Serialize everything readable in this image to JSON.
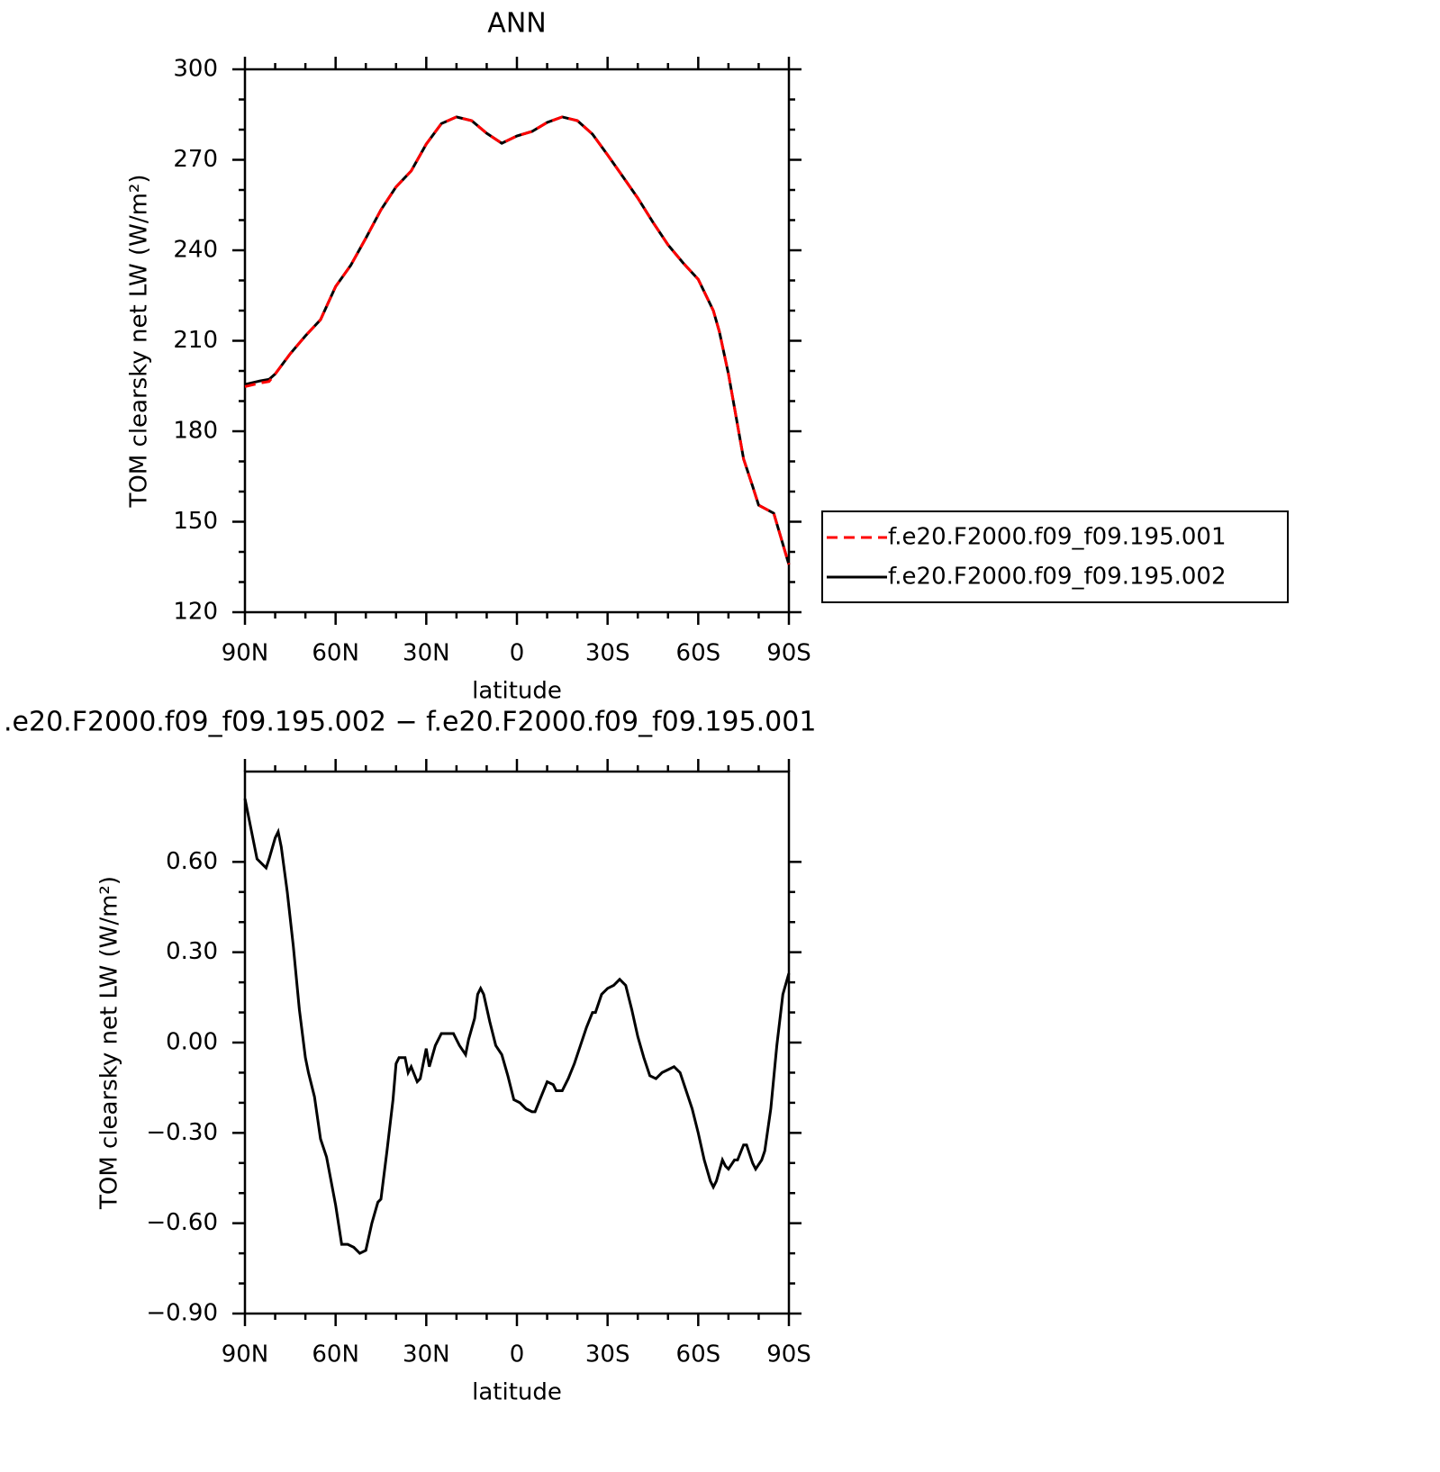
{
  "chart_data": [
    {
      "type": "line",
      "title": "ANN",
      "xlabel": "latitude",
      "ylabel": "TOM clearsky net LW (W/m²)",
      "x": [
        90,
        85,
        82,
        80,
        75,
        70,
        65,
        60,
        55,
        50,
        45,
        40,
        35,
        30,
        25,
        20,
        15,
        10,
        5,
        0,
        -5,
        -10,
        -15,
        -20,
        -25,
        -30,
        -35,
        -40,
        -45,
        -50,
        -55,
        -60,
        -65,
        -67,
        -70,
        -75,
        -78,
        -80,
        -85,
        -90
      ],
      "series": [
        {
          "name": "f.e20.F2000.f09_f09.195.001",
          "color": "#ff0000",
          "line_style": "dashed",
          "values": [
            194.8,
            196.0,
            196.5,
            199,
            205.7,
            211.6,
            217,
            228,
            235,
            244,
            253.4,
            261,
            266.3,
            275.2,
            282,
            284.2,
            283,
            278.8,
            275.5,
            277.9,
            279.4,
            282.4,
            284.2,
            283,
            278.5,
            271.6,
            264.5,
            257.3,
            249.3,
            241.8,
            235.8,
            230.4,
            220,
            213,
            199,
            170.8,
            161.8,
            155.5,
            152.8,
            135.8
          ]
        },
        {
          "name": "f.e20.F2000.f09_f09.195.002",
          "color": "#000000",
          "line_style": "solid",
          "values": [
            195.5,
            196.7,
            197.2,
            199,
            205.7,
            211.6,
            217,
            228,
            235,
            244,
            253.4,
            261,
            266.3,
            275.2,
            282,
            284.2,
            283,
            278.8,
            275.5,
            277.9,
            279.4,
            282.4,
            284.2,
            283,
            278.5,
            271.6,
            264.5,
            257.3,
            249.3,
            241.8,
            235.8,
            230.4,
            220,
            213,
            199,
            170.8,
            161.8,
            155.5,
            152.8,
            135.8
          ]
        }
      ],
      "xlim": [
        90,
        -90
      ],
      "xticks": [
        {
          "value": 90,
          "label": "90N"
        },
        {
          "value": 60,
          "label": "60N"
        },
        {
          "value": 30,
          "label": "30N"
        },
        0,
        {
          "value": -30,
          "label": "30S"
        },
        {
          "value": -60,
          "label": "60S"
        },
        {
          "value": -90,
          "label": "90S"
        }
      ],
      "ylim": [
        120,
        300
      ],
      "yticks": [
        120,
        150,
        180,
        210,
        240,
        270,
        300
      ],
      "legend": "outside-right"
    },
    {
      "type": "line",
      "title": ".e20.F2000.f09_f09.195.002 − f.e20.F2000.f09_f09.195.001",
      "xlabel": "latitude",
      "ylabel": "TOM clearsky net LW (W/m²)",
      "x": [
        90,
        88,
        86,
        84,
        83,
        82,
        80,
        79,
        78,
        76,
        74,
        72,
        70,
        69,
        67,
        65,
        63,
        60,
        58,
        56,
        54,
        52,
        50,
        48,
        46,
        45,
        43,
        41,
        40,
        39,
        37,
        36,
        35,
        33,
        32,
        30,
        29,
        27,
        25,
        23,
        21,
        19,
        17,
        16,
        14,
        13,
        12,
        11,
        9,
        7,
        5,
        3,
        1,
        -1,
        -3,
        -5,
        -6,
        -8,
        -10,
        -12,
        -13,
        -15,
        -17,
        -19,
        -21,
        -23,
        -25,
        -26,
        -28,
        -30,
        -32,
        -34,
        -36,
        -38,
        -40,
        -42,
        -44,
        -46,
        -48,
        -50,
        -52,
        -54,
        -56,
        -58,
        -60,
        -62,
        -64,
        -65,
        -66,
        -68,
        -69,
        -70,
        -72,
        -73,
        -75,
        -76,
        -78,
        -79,
        -81,
        -82,
        -84,
        -86,
        -88,
        -90
      ],
      "values": [
        0.81,
        0.71,
        0.61,
        0.59,
        0.58,
        0.61,
        0.68,
        0.7,
        0.65,
        0.5,
        0.32,
        0.11,
        -0.05,
        -0.1,
        -0.18,
        -0.32,
        -0.38,
        -0.54,
        -0.67,
        -0.67,
        -0.68,
        -0.7,
        -0.69,
        -0.6,
        -0.53,
        -0.52,
        -0.36,
        -0.19,
        -0.07,
        -0.05,
        -0.05,
        -0.1,
        -0.08,
        -0.13,
        -0.12,
        -0.02,
        -0.08,
        -0.01,
        0.03,
        0.03,
        0.03,
        -0.01,
        -0.04,
        0.01,
        0.08,
        0.16,
        0.18,
        0.16,
        0.07,
        -0.01,
        -0.04,
        -0.11,
        -0.19,
        -0.2,
        -0.22,
        -0.23,
        -0.23,
        -0.18,
        -0.13,
        -0.14,
        -0.16,
        -0.16,
        -0.12,
        -0.07,
        -0.01,
        0.05,
        0.1,
        0.1,
        0.16,
        0.18,
        0.19,
        0.21,
        0.19,
        0.11,
        0.02,
        -0.05,
        -0.11,
        -0.12,
        -0.1,
        -0.09,
        -0.08,
        -0.1,
        -0.16,
        -0.22,
        -0.3,
        -0.39,
        -0.46,
        -0.48,
        -0.46,
        -0.39,
        -0.41,
        -0.42,
        -0.39,
        -0.39,
        -0.34,
        -0.34,
        -0.4,
        -0.42,
        -0.39,
        -0.36,
        -0.22,
        -0.01,
        0.16,
        0.23
      ],
      "color": "#000000",
      "xlim": [
        90,
        -90
      ],
      "xticks": [
        {
          "value": 90,
          "label": "90N"
        },
        {
          "value": 60,
          "label": "60N"
        },
        {
          "value": 30,
          "label": "30N"
        },
        0,
        {
          "value": -30,
          "label": "30S"
        },
        {
          "value": -60,
          "label": "60S"
        },
        {
          "value": -90,
          "label": "90S"
        }
      ],
      "ylim": [
        -0.9,
        0.9
      ],
      "yticks": [
        {
          "value": -0.9,
          "label": "−0.90"
        },
        {
          "value": -0.6,
          "label": "−0.60"
        },
        {
          "value": -0.3,
          "label": "−0.30"
        },
        {
          "value": 0,
          "label": "0.00"
        },
        {
          "value": 0.3,
          "label": "0.30"
        },
        {
          "value": 0.6,
          "label": "0.60"
        }
      ]
    }
  ]
}
